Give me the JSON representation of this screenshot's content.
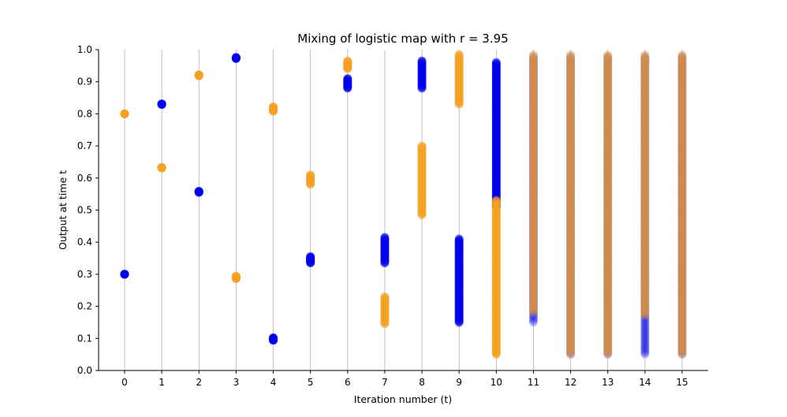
{
  "chart_data": {
    "type": "scatter",
    "title": "Mixing of logistic map with r = 3.95",
    "xlabel": "Iteration number (t)",
    "ylabel": "Output at time t",
    "xlim": [
      -0.7,
      15.7
    ],
    "ylim": [
      0.0,
      1.0
    ],
    "x_ticks": [
      0,
      1,
      2,
      3,
      4,
      5,
      6,
      7,
      8,
      9,
      10,
      11,
      12,
      13,
      14,
      15
    ],
    "y_ticks": [
      "0.0",
      "0.1",
      "0.2",
      "0.3",
      "0.4",
      "0.5",
      "0.6",
      "0.7",
      "0.8",
      "0.9",
      "1.0"
    ],
    "vertical_grid": true,
    "series": [
      {
        "name": "blue",
        "color": "#0000ee",
        "ranges": [
          {
            "t": 0,
            "lo": 0.3,
            "hi": 0.3
          },
          {
            "t": 1,
            "lo": 0.829,
            "hi": 0.831
          },
          {
            "t": 2,
            "lo": 0.555,
            "hi": 0.559
          },
          {
            "t": 3,
            "lo": 0.972,
            "hi": 0.976
          },
          {
            "t": 4,
            "lo": 0.094,
            "hi": 0.102
          },
          {
            "t": 5,
            "lo": 0.335,
            "hi": 0.355
          },
          {
            "t": 6,
            "lo": 0.88,
            "hi": 0.91
          },
          {
            "t": 7,
            "lo": 0.335,
            "hi": 0.415
          },
          {
            "t": 8,
            "lo": 0.88,
            "hi": 0.965
          },
          {
            "t": 9,
            "lo": 0.15,
            "hi": 0.41
          },
          {
            "t": 10,
            "lo": 0.51,
            "hi": 0.96
          },
          {
            "t": 11,
            "lo": 0.15,
            "hi": 0.98
          },
          {
            "t": 12,
            "lo": 0.05,
            "hi": 0.98
          },
          {
            "t": 13,
            "lo": 0.05,
            "hi": 0.98
          },
          {
            "t": 14,
            "lo": 0.05,
            "hi": 0.98
          },
          {
            "t": 15,
            "lo": 0.05,
            "hi": 0.98
          }
        ]
      },
      {
        "name": "orange",
        "color": "#f5a020",
        "ranges": [
          {
            "t": 0,
            "lo": 0.8,
            "hi": 0.8
          },
          {
            "t": 1,
            "lo": 0.631,
            "hi": 0.633
          },
          {
            "t": 2,
            "lo": 0.918,
            "hi": 0.922
          },
          {
            "t": 3,
            "lo": 0.286,
            "hi": 0.294
          },
          {
            "t": 4,
            "lo": 0.808,
            "hi": 0.822
          },
          {
            "t": 5,
            "lo": 0.58,
            "hi": 0.61
          },
          {
            "t": 6,
            "lo": 0.94,
            "hi": 0.965
          },
          {
            "t": 7,
            "lo": 0.145,
            "hi": 0.23
          },
          {
            "t": 8,
            "lo": 0.485,
            "hi": 0.7
          },
          {
            "t": 9,
            "lo": 0.83,
            "hi": 0.985
          },
          {
            "t": 10,
            "lo": 0.05,
            "hi": 0.53
          },
          {
            "t": 11,
            "lo": 0.18,
            "hi": 0.985
          },
          {
            "t": 12,
            "lo": 0.05,
            "hi": 0.985
          },
          {
            "t": 13,
            "lo": 0.05,
            "hi": 0.985
          },
          {
            "t": 14,
            "lo": 0.17,
            "hi": 0.985
          },
          {
            "t": 15,
            "lo": 0.05,
            "hi": 0.985
          }
        ]
      }
    ]
  }
}
